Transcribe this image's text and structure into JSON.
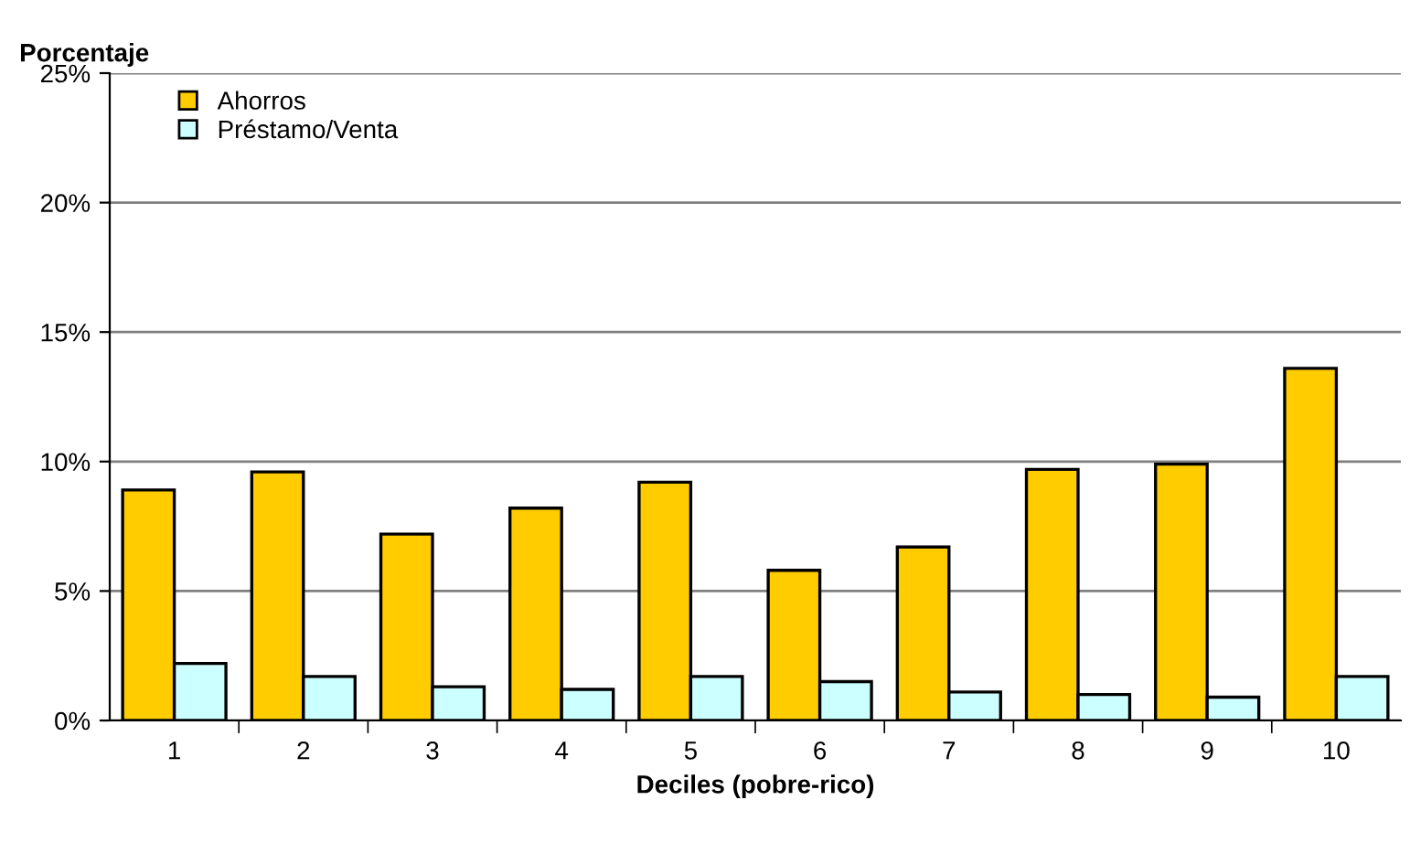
{
  "chart_data": {
    "type": "bar",
    "ylabel": "Porcentaje",
    "xlabel": "Deciles (pobre-rico)",
    "categories": [
      "1",
      "2",
      "3",
      "4",
      "5",
      "6",
      "7",
      "8",
      "9",
      "10"
    ],
    "series": [
      {
        "name": "Ahorros",
        "color": "#ffcc00",
        "values": [
          8.9,
          9.6,
          7.2,
          8.2,
          9.2,
          5.8,
          6.7,
          9.7,
          9.9,
          13.6
        ]
      },
      {
        "name": "Préstamo/Venta",
        "color": "#ccffff",
        "values": [
          2.2,
          1.7,
          1.3,
          1.2,
          1.7,
          1.5,
          1.1,
          1.0,
          0.9,
          1.7
        ]
      }
    ],
    "ylim": [
      0,
      25
    ],
    "yticks": [
      {
        "value": 0,
        "label": "0%"
      },
      {
        "value": 5,
        "label": "5%"
      },
      {
        "value": 10,
        "label": "10%"
      },
      {
        "value": 15,
        "label": "15%"
      },
      {
        "value": 20,
        "label": "20%"
      },
      {
        "value": 25,
        "label": "25%"
      }
    ],
    "grid": "y",
    "legend": "top left"
  }
}
